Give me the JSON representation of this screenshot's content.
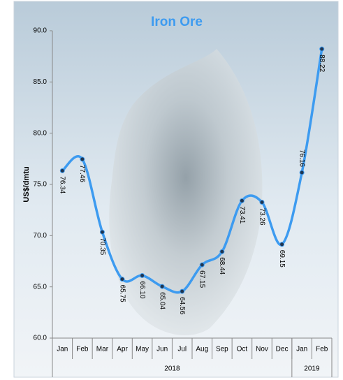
{
  "chart_data": {
    "type": "line",
    "title": "Iron Ore",
    "y_label": "US$/dmtu",
    "categories": [
      "Jan",
      "Feb",
      "Mar",
      "Apr",
      "May",
      "Jun",
      "Jul",
      "Aug",
      "Sep",
      "Oct",
      "Nov",
      "Dec",
      "Jan",
      "Feb"
    ],
    "year_groups": [
      {
        "label": "2018",
        "count": 12
      },
      {
        "label": "2019",
        "count": 2
      }
    ],
    "series": [
      {
        "name": "Iron Ore",
        "color": "#3d9bf0",
        "values": [
          76.34,
          77.46,
          70.35,
          65.75,
          66.1,
          65.04,
          64.56,
          67.15,
          68.44,
          73.41,
          73.26,
          69.15,
          76.16,
          88.22
        ],
        "value_labels": [
          "76.34",
          "77.46",
          "70.35",
          "65.75",
          "66.10",
          "65.04",
          "64.56",
          "67.15",
          "68.44",
          "73.41",
          "73.26",
          "69.15",
          "76.16",
          "88.22"
        ]
      }
    ],
    "ylim": [
      60,
      90
    ],
    "yticks": [
      {
        "value": 60,
        "label": "60.0"
      },
      {
        "value": 65,
        "label": "65.0"
      },
      {
        "value": 70,
        "label": "70.0"
      },
      {
        "value": 75,
        "label": "75.0"
      },
      {
        "value": 80,
        "label": "80.0"
      },
      {
        "value": 85,
        "label": "85.0"
      },
      {
        "value": 90,
        "label": "90.0"
      }
    ],
    "grid": false
  }
}
